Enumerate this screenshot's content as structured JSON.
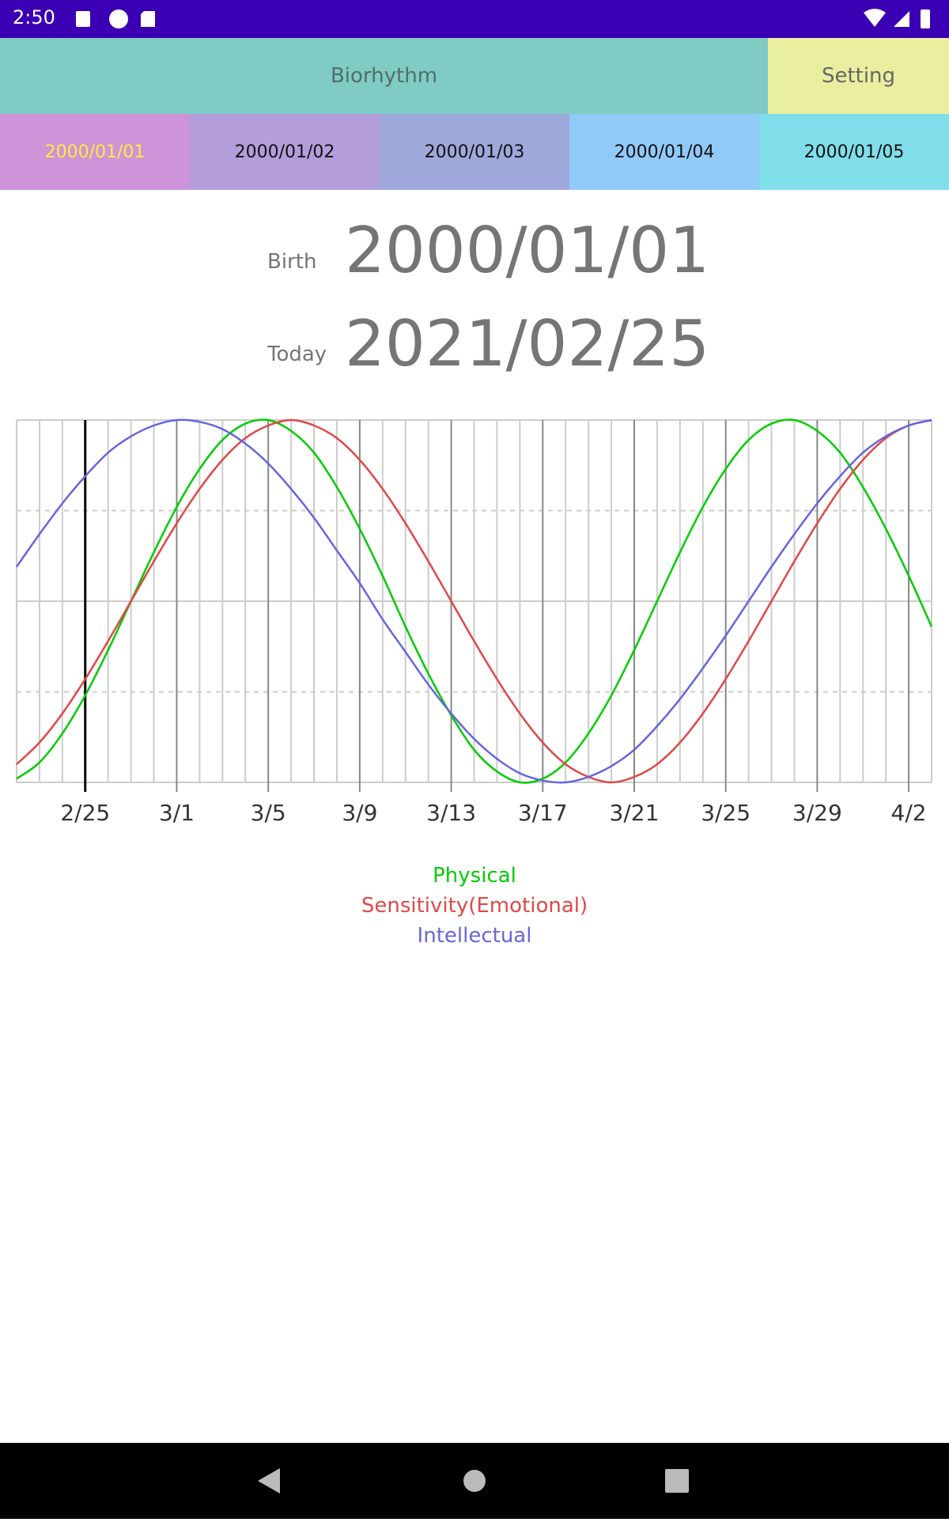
{
  "status_bar": {
    "time": "2:50"
  },
  "tabs": [
    "Biorhythm",
    "Setting"
  ],
  "date_tabs": [
    "2000/01/01",
    "2000/01/02",
    "2000/01/03",
    "2000/01/04",
    "2000/01/05"
  ],
  "birth": {
    "label": "Birth",
    "value": "2000/01/01"
  },
  "today": {
    "label": "Today",
    "value": "2021/02/25"
  },
  "chart_data": {
    "type": "line",
    "categories": [
      null,
      null,
      null,
      "2/25",
      null,
      null,
      null,
      "3/1",
      null,
      null,
      null,
      "3/5",
      null,
      null,
      null,
      "3/9",
      null,
      null,
      null,
      "3/13",
      null,
      null,
      null,
      "3/17",
      null,
      null,
      null,
      "3/21",
      null,
      null,
      null,
      "3/25",
      null,
      null,
      null,
      "3/29",
      null,
      null,
      null,
      "4/2",
      null
    ],
    "series": [
      {
        "name": "Physical",
        "color": "#00cc00",
        "values": [
          -0.98,
          -0.89,
          -0.73,
          -0.52,
          -0.27,
          0,
          0.27,
          0.52,
          0.73,
          0.89,
          0.98,
          1.0,
          0.94,
          0.82,
          0.63,
          0.4,
          0.14,
          -0.14,
          -0.4,
          -0.63,
          -0.82,
          -0.94,
          -1.0,
          -0.98,
          -0.89,
          -0.73,
          -0.52,
          -0.27,
          0,
          0.27,
          0.52,
          0.73,
          0.89,
          0.98,
          1.0,
          0.94,
          0.82,
          0.63,
          0.4,
          0.14,
          -0.14
        ]
      },
      {
        "name": "Sensitivity(Emotional)",
        "color": "#e04848",
        "values": [
          -0.9,
          -0.78,
          -0.62,
          -0.43,
          -0.22,
          0,
          0.22,
          0.43,
          0.62,
          0.78,
          0.9,
          0.97,
          1.0,
          0.97,
          0.9,
          0.78,
          0.62,
          0.43,
          0.22,
          0,
          -0.22,
          -0.43,
          -0.62,
          -0.78,
          -0.9,
          -0.97,
          -1.0,
          -0.97,
          -0.9,
          -0.78,
          -0.62,
          -0.43,
          -0.22,
          0,
          0.22,
          0.43,
          0.62,
          0.78,
          0.9,
          0.97,
          1.0
        ]
      },
      {
        "name": "Intellectual",
        "color": "#6666dd",
        "values": [
          0.19,
          0.37,
          0.54,
          0.69,
          0.82,
          0.91,
          0.97,
          1.0,
          0.99,
          0.95,
          0.87,
          0.76,
          0.62,
          0.46,
          0.28,
          0.1,
          -0.1,
          -0.28,
          -0.46,
          -0.62,
          -0.76,
          -0.87,
          -0.95,
          -0.99,
          -1.0,
          -0.97,
          -0.91,
          -0.82,
          -0.69,
          -0.54,
          -0.37,
          -0.19,
          0,
          0.19,
          0.37,
          0.54,
          0.69,
          0.82,
          0.91,
          0.97,
          1.0
        ]
      }
    ],
    "ylim": [
      -1,
      1
    ]
  }
}
